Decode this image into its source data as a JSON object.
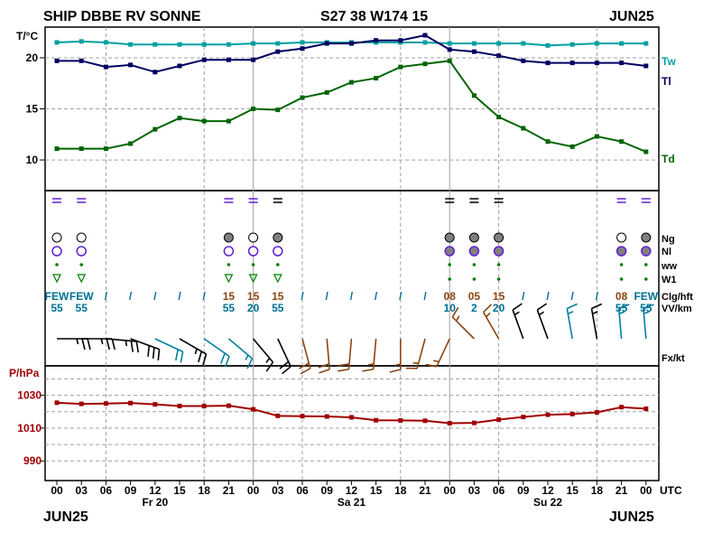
{
  "header": {
    "station": "SHIP DBBE RV SONNE",
    "position": "S27 38 W174 15",
    "month_top": "JUN25",
    "month_bottom_left": "JUN25",
    "month_bottom_right": "JUN25"
  },
  "colors": {
    "tw": "#00a0a0",
    "tl": "#000060",
    "td": "#006400",
    "pressure": "#a00000",
    "brown": "#8b4513",
    "teal_text": "#007090",
    "purple": "#6020d0",
    "green_symbol": "#008000",
    "grid": "#a0a0a0"
  },
  "chart_data": {
    "type": "line",
    "x_axis": {
      "tick_labels": [
        "00",
        "03",
        "06",
        "09",
        "12",
        "15",
        "18",
        "21",
        "00",
        "03",
        "06",
        "09",
        "12",
        "15",
        "18",
        "21",
        "00",
        "03",
        "06",
        "09",
        "12",
        "15",
        "18",
        "21",
        "00"
      ],
      "unit_label": "UTC",
      "day_labels": [
        {
          "label": "Fr 20",
          "index": 4
        },
        {
          "label": "Sa 21",
          "index": 12
        },
        {
          "label": "Su 22",
          "index": 20
        }
      ]
    },
    "temperature": {
      "ylabel": "T/°C",
      "ylim": [
        7,
        23
      ],
      "yticks": [
        "10",
        "15",
        "20"
      ],
      "series": [
        {
          "name": "Tw",
          "values": [
            21.5,
            21.6,
            21.5,
            21.3,
            21.3,
            21.3,
            21.3,
            21.3,
            21.4,
            21.4,
            21.5,
            21.5,
            21.5,
            21.5,
            21.5,
            21.5,
            21.4,
            21.4,
            21.4,
            21.4,
            21.2,
            21.3,
            21.4,
            21.4,
            21.4
          ]
        },
        {
          "name": "Tl",
          "values": [
            19.7,
            19.7,
            19.1,
            19.3,
            18.6,
            19.2,
            19.8,
            19.8,
            19.8,
            20.6,
            20.9,
            21.4,
            21.4,
            21.7,
            21.7,
            22.2,
            20.8,
            20.6,
            20.2,
            19.7,
            19.5,
            19.5,
            19.5,
            19.5,
            19.2
          ]
        },
        {
          "name": "Td",
          "values": [
            11.1,
            11.1,
            11.1,
            11.6,
            13.0,
            14.1,
            13.8,
            13.8,
            15.0,
            14.9,
            16.1,
            16.6,
            17.6,
            18.0,
            19.1,
            19.4,
            19.7,
            16.3,
            14.2,
            13.1,
            11.8,
            11.3,
            12.3,
            11.8,
            10.8
          ]
        }
      ]
    },
    "pressure": {
      "ylabel": "P/hPa",
      "ylim": [
        978,
        1048
      ],
      "yticks": [
        "990",
        "1010",
        "1030"
      ],
      "series": [
        {
          "name": "P",
          "values": [
            1025.5,
            1024.8,
            1025.0,
            1025.3,
            1024.5,
            1023.5,
            1023.5,
            1023.7,
            1021.5,
            1017.5,
            1017.3,
            1017.1,
            1016.6,
            1014.8,
            1014.7,
            1014.5,
            1013.0,
            1013.2,
            1015.2,
            1016.8,
            1018.2,
            1018.6,
            1019.6,
            1022.8,
            1021.8
          ]
        }
      ]
    }
  },
  "station_model": {
    "row_labels": [
      "Ng",
      "Nl",
      "ww",
      "W1",
      "Clg/hft",
      "VV/km",
      "Fx/kt"
    ],
    "ceiling": [
      "FEW",
      "FEW",
      "/",
      "/",
      "/",
      "/",
      "/",
      "15",
      "15",
      "15",
      "/",
      "/",
      "/",
      "/",
      "/",
      "/",
      "08",
      "05",
      "15",
      "/",
      "/",
      "/",
      "/",
      "08",
      "FEW"
    ],
    "visibility": [
      "55",
      "55",
      "",
      "",
      "",
      "",
      "",
      "55",
      "20",
      "55",
      "",
      "",
      "",
      "",
      "",
      "",
      "10",
      "2",
      "20",
      "",
      "",
      "",
      "",
      "55",
      "55"
    ],
    "wind_barbs": [
      {
        "dir": 270,
        "speed": 25
      },
      {
        "dir": 270,
        "speed": 25
      },
      {
        "dir": 275,
        "speed": 25
      },
      {
        "dir": 290,
        "speed": 30
      },
      {
        "dir": 295,
        "speed": 20
      },
      {
        "dir": 300,
        "speed": 25
      },
      {
        "dir": 305,
        "speed": 20
      },
      {
        "dir": 310,
        "speed": 15
      },
      {
        "dir": 320,
        "speed": 15
      },
      {
        "dir": 335,
        "speed": 20
      },
      {
        "dir": 345,
        "speed": 20
      },
      {
        "dir": 355,
        "speed": 20
      },
      {
        "dir": 5,
        "speed": 20
      },
      {
        "dir": 5,
        "speed": 15
      },
      {
        "dir": 0,
        "speed": 15
      },
      {
        "dir": 15,
        "speed": 15
      },
      {
        "dir": 25,
        "speed": 15
      },
      {
        "dir": 135,
        "speed": 15
      },
      {
        "dir": 150,
        "speed": 15
      },
      {
        "dir": 160,
        "speed": 15
      },
      {
        "dir": 160,
        "speed": 15
      },
      {
        "dir": 170,
        "speed": 15
      },
      {
        "dir": 170,
        "speed": 15
      },
      {
        "dir": 175,
        "speed": 15
      },
      {
        "dir": 175,
        "speed": 15
      }
    ],
    "wind_colors": [
      "black",
      "black",
      "black",
      "black",
      "teal",
      "black",
      "teal",
      "teal",
      "black",
      "black",
      "brown",
      "brown",
      "brown",
      "brown",
      "brown",
      "brown",
      "brown",
      "brown",
      "brown",
      "black",
      "black",
      "teal",
      "black",
      "teal",
      "teal"
    ]
  }
}
